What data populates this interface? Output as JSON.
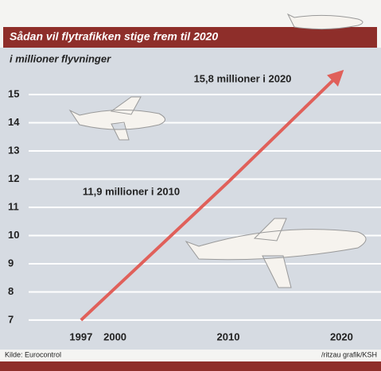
{
  "chart_data": {
    "type": "line",
    "title": "Sådan vil flytrafikken stige frem til 2020",
    "subtitle": "i millioner flyvninger",
    "x": [
      1997,
      2010,
      2020
    ],
    "values": [
      7,
      11.9,
      15.8
    ],
    "color": "#e0605a",
    "xlim": [
      1990.2,
      2023.2
    ],
    "xticks": [
      1997,
      2000,
      2010,
      2020
    ],
    "ylim": [
      6.66,
      16.1
    ],
    "yticks": [
      7,
      8,
      9,
      10,
      11,
      12,
      13,
      14,
      15
    ],
    "grid": true,
    "annotations": [
      "15,8 millioner i 2020",
      "11,9 millioner i 2010"
    ],
    "source": "Kilde: Eurocontrol",
    "credit": "/ritzau grafik/KSH"
  }
}
